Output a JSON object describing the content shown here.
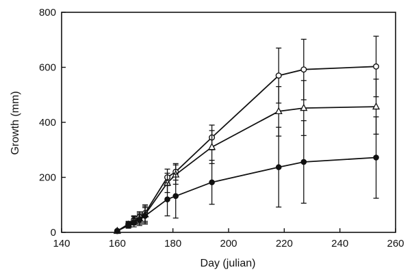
{
  "chart_data": {
    "type": "line",
    "xlabel": "Day (julian)",
    "ylabel": "Growth (mm)",
    "xlim": [
      140,
      260
    ],
    "ylim": [
      0,
      800
    ],
    "xticks": [
      "140",
      "160",
      "180",
      "200",
      "220",
      "240",
      "260"
    ],
    "yticks": [
      "0",
      "200",
      "400",
      "600",
      "800"
    ],
    "grid": false,
    "legend": "none",
    "series": [
      {
        "marker": "open-circle",
        "color": "#111111",
        "x": [
          160,
          164,
          166,
          168,
          170,
          178,
          181,
          194,
          218,
          227,
          253
        ],
        "y": [
          5,
          30,
          45,
          55,
          70,
          200,
          220,
          345,
          570,
          592,
          603
        ],
        "error": [
          0,
          10,
          15,
          20,
          30,
          30,
          30,
          45,
          100,
          110,
          110
        ]
      },
      {
        "marker": "open-triangle",
        "color": "#111111",
        "x": [
          160,
          164,
          166,
          168,
          170,
          178,
          181,
          194,
          218,
          227,
          253
        ],
        "y": [
          5,
          28,
          42,
          50,
          65,
          180,
          210,
          310,
          440,
          452,
          457
        ],
        "error": [
          0,
          10,
          15,
          20,
          30,
          35,
          35,
          60,
          90,
          100,
          100
        ]
      },
      {
        "marker": "filled-circle",
        "color": "#111111",
        "x": [
          160,
          164,
          166,
          168,
          170,
          178,
          181,
          194,
          218,
          227,
          253
        ],
        "y": [
          5,
          25,
          35,
          45,
          60,
          120,
          132,
          182,
          237,
          256,
          272
        ],
        "error": [
          0,
          10,
          15,
          20,
          30,
          60,
          80,
          80,
          145,
          150,
          148
        ]
      }
    ]
  }
}
